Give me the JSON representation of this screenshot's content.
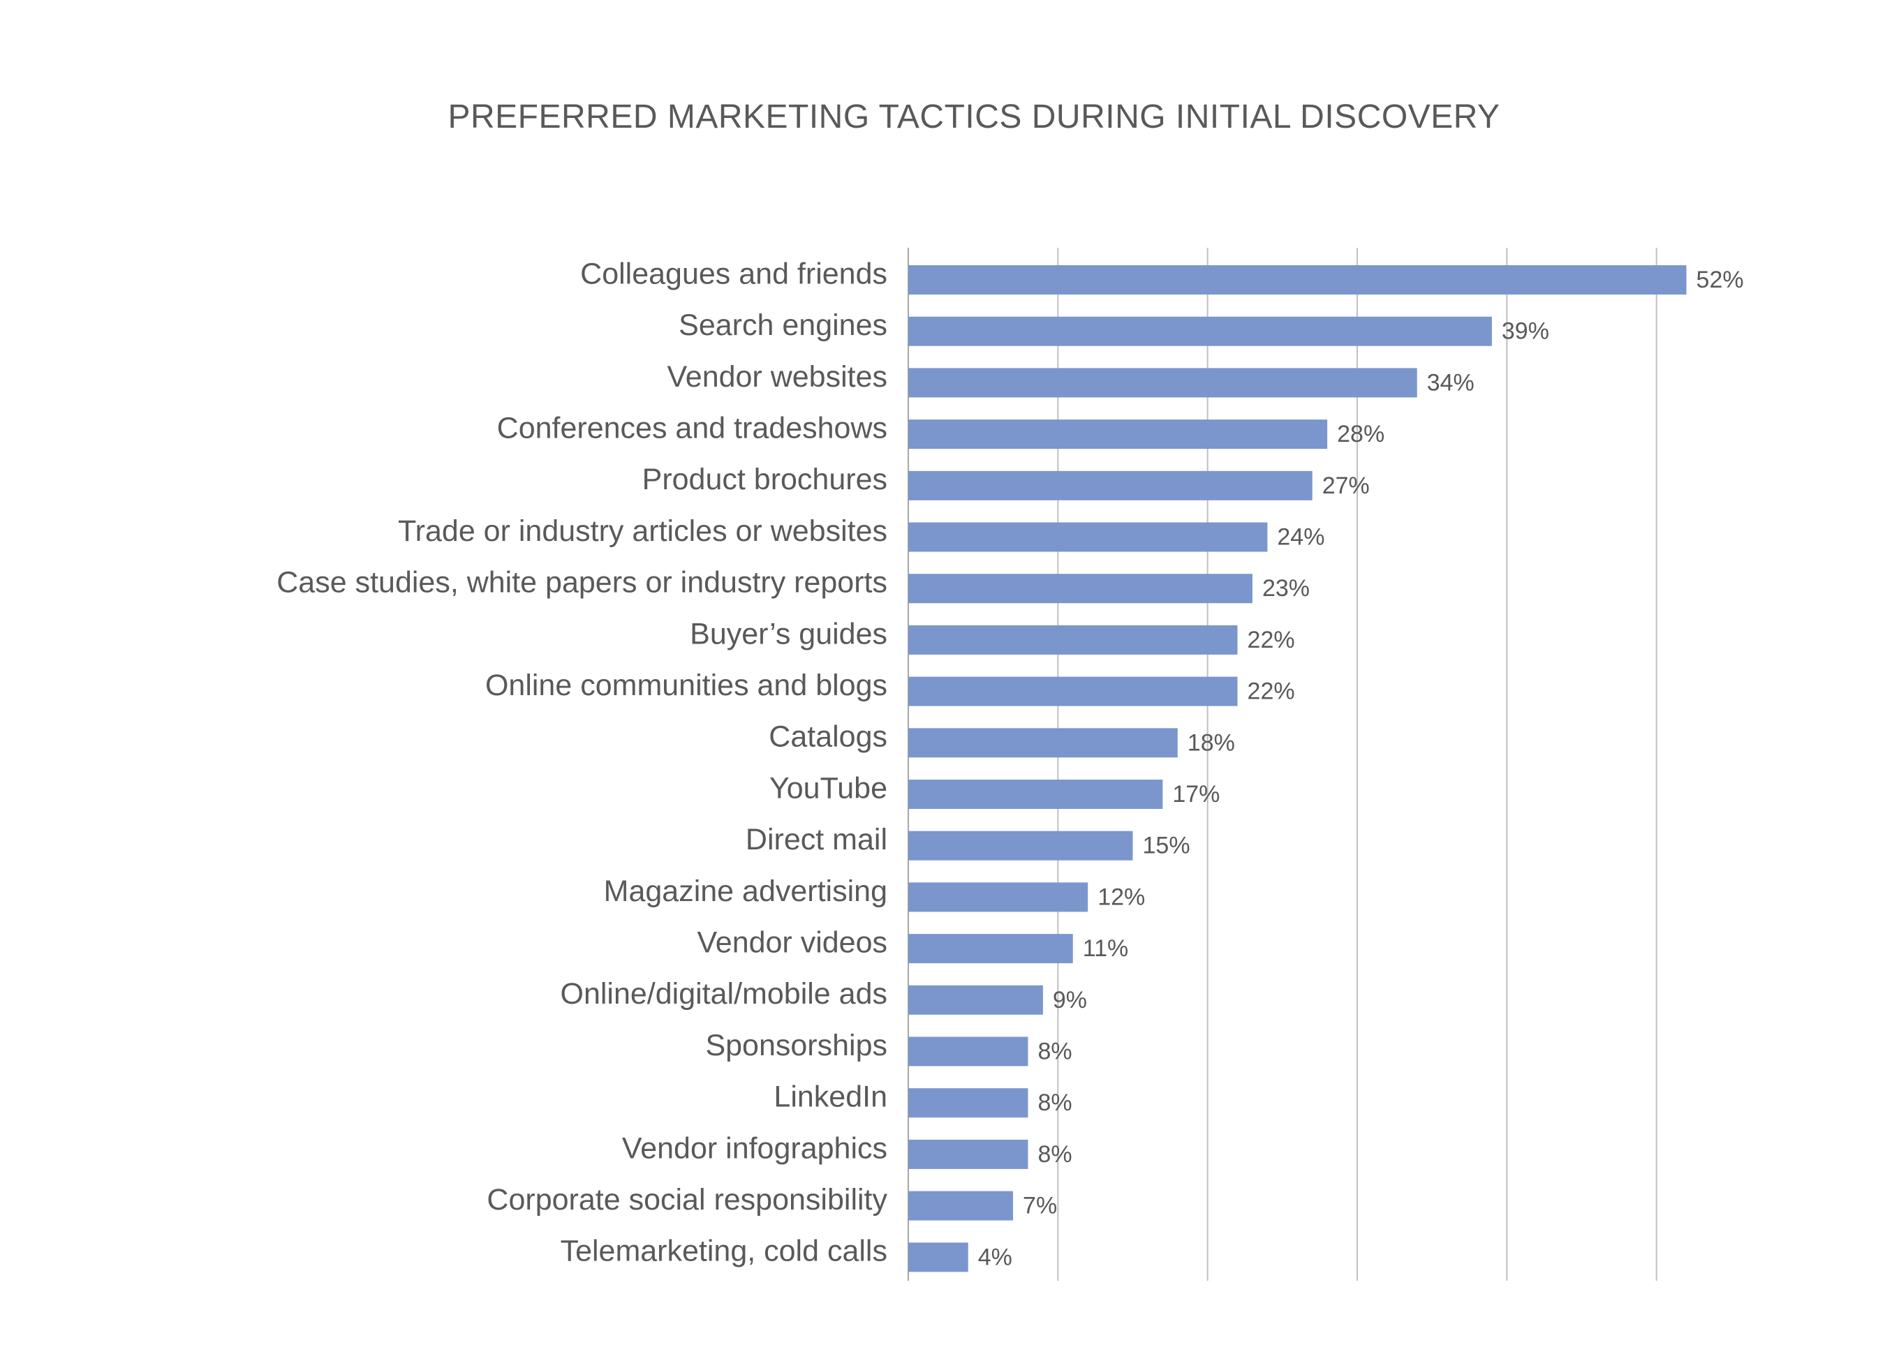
{
  "chart_data": {
    "type": "bar",
    "orientation": "horizontal",
    "title": "PREFERRED MARKETING TACTICS DURING INITIAL DISCOVERY",
    "xlabel": "",
    "ylabel": "",
    "xlim": [
      0,
      60
    ],
    "grid": true,
    "legend": "none",
    "bar_color": "#7b96cd",
    "categories": [
      "Colleagues and friends",
      "Search engines",
      "Vendor websites",
      "Conferences and tradeshows",
      "Product brochures",
      "Trade or industry articles or websites",
      "Case studies, white papers or industry reports",
      "Buyer’s guides",
      "Online communities and blogs",
      "Catalogs",
      "YouTube",
      "Direct mail",
      "Magazine advertising",
      "Vendor videos",
      "Online/digital/mobile ads",
      "Sponsorships",
      "LinkedIn",
      "Vendor infographics",
      "Corporate social responsibility",
      "Telemarketing, cold calls"
    ],
    "values": [
      52,
      39,
      34,
      28,
      27,
      24,
      23,
      22,
      22,
      18,
      17,
      15,
      12,
      11,
      9,
      8,
      8,
      8,
      7,
      4
    ],
    "value_labels": [
      "52%",
      "39%",
      "34%",
      "28%",
      "27%",
      "24%",
      "23%",
      "22%",
      "22%",
      "18%",
      "17%",
      "15%",
      "12%",
      "11%",
      "9%",
      "8%",
      "8%",
      "8%",
      "7%",
      "4%"
    ]
  }
}
